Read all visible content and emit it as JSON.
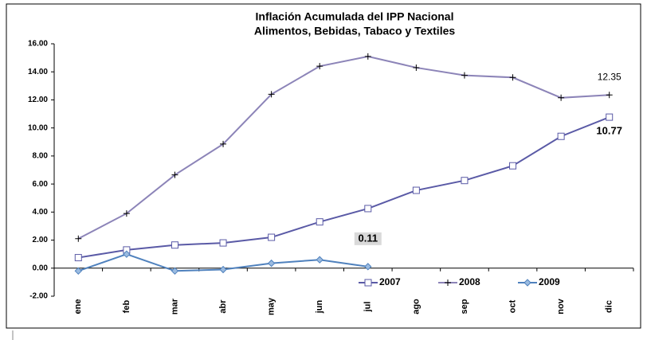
{
  "chart_data": {
    "type": "line",
    "title": [
      "Inflación Acumulada del IPP Nacional",
      "Alimentos, Bebidas, Tabaco y Textiles"
    ],
    "categories": [
      "ene",
      "feb",
      "mar",
      "abr",
      "may",
      "jun",
      "jul",
      "ago",
      "sep",
      "oct",
      "nov",
      "dic"
    ],
    "series": [
      {
        "name": "2007",
        "color": "#5a5aa6",
        "marker": "square",
        "values": [
          0.75,
          1.3,
          1.65,
          1.8,
          2.2,
          3.3,
          4.25,
          5.55,
          6.25,
          7.3,
          9.4,
          10.77
        ],
        "value_labels": [
          null,
          null,
          null,
          null,
          null,
          null,
          null,
          null,
          null,
          null,
          null,
          "10.77"
        ]
      },
      {
        "name": "2008",
        "color": "#8c84b8",
        "marker": "plus",
        "values": [
          2.1,
          3.9,
          6.65,
          8.85,
          12.4,
          14.4,
          15.1,
          14.3,
          13.75,
          13.6,
          12.15,
          12.35
        ],
        "value_labels": [
          null,
          null,
          null,
          null,
          null,
          null,
          null,
          null,
          null,
          null,
          null,
          "12.35"
        ]
      },
      {
        "name": "2009",
        "color": "#4f81bd",
        "marker": "diamond",
        "values": [
          -0.2,
          1.0,
          -0.2,
          -0.1,
          0.35,
          0.6,
          0.11,
          null,
          null,
          null,
          null,
          null
        ],
        "value_labels": [
          null,
          null,
          null,
          null,
          null,
          null,
          "0.11",
          null,
          null,
          null,
          null,
          null
        ]
      }
    ],
    "ylim": [
      -2,
      16
    ],
    "yticks": [
      {
        "value": -2,
        "label": "-2.00"
      },
      {
        "value": 0,
        "label": "0.00"
      },
      {
        "value": 2,
        "label": "2.00"
      },
      {
        "value": 4,
        "label": "4.00"
      },
      {
        "value": 6,
        "label": "6.00"
      },
      {
        "value": 8,
        "label": "8.00"
      },
      {
        "value": 10,
        "label": "10.00"
      },
      {
        "value": 12,
        "label": "12.00"
      },
      {
        "value": 14,
        "label": "14.00"
      },
      {
        "value": 16,
        "label": "16.00"
      }
    ],
    "legend": "bottom"
  }
}
